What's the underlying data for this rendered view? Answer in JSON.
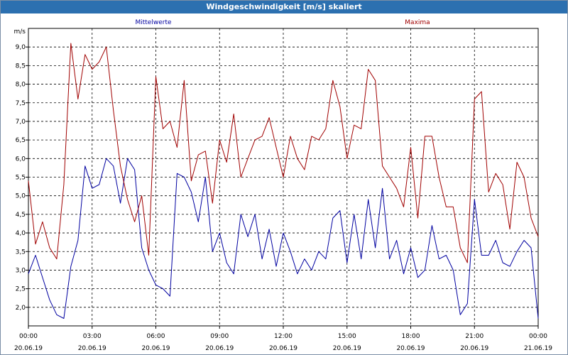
{
  "window": {
    "title": "Windgeschwindigkeit [m/s] skaliert"
  },
  "chart_data": {
    "type": "line",
    "title": "Windgeschwindigkeit [m/s] skaliert",
    "ylabel": "m/s",
    "ylim": [
      1.5,
      9.5
    ],
    "yticks": [
      "2,0",
      "2,5",
      "3,0",
      "3,5",
      "4,0",
      "4,5",
      "5,0",
      "5,5",
      "6,0",
      "6,5",
      "7,0",
      "7,5",
      "8,0",
      "8,5",
      "9,0"
    ],
    "xlim": [
      "20.06.19 00:00",
      "21.06.19 00:00"
    ],
    "xticks": [
      {
        "time": "00:00",
        "date": "20.06.19"
      },
      {
        "time": "03:00",
        "date": "20.06.19"
      },
      {
        "time": "06:00",
        "date": "20.06.19"
      },
      {
        "time": "09:00",
        "date": "20.06.19"
      },
      {
        "time": "12:00",
        "date": "20.06.19"
      },
      {
        "time": "15:00",
        "date": "20.06.19"
      },
      {
        "time": "18:00",
        "date": "20.06.19"
      },
      {
        "time": "21:00",
        "date": "20.06.19"
      },
      {
        "time": "00:00",
        "date": "21.06.19"
      }
    ],
    "grid": true,
    "series": [
      {
        "name": "Mittelwerte",
        "color": "#0000a0",
        "x": [
          "00:00",
          "00:20",
          "00:40",
          "01:00",
          "01:20",
          "01:40",
          "02:00",
          "02:20",
          "02:40",
          "03:00",
          "03:20",
          "03:40",
          "04:00",
          "04:20",
          "04:40",
          "05:00",
          "05:20",
          "05:40",
          "06:00",
          "06:20",
          "06:40",
          "07:00",
          "07:20",
          "07:40",
          "08:00",
          "08:20",
          "08:40",
          "09:00",
          "09:20",
          "09:40",
          "10:00",
          "10:20",
          "10:40",
          "11:00",
          "11:20",
          "11:40",
          "12:00",
          "12:20",
          "12:40",
          "13:00",
          "13:20",
          "13:40",
          "14:00",
          "14:20",
          "14:40",
          "15:00",
          "15:20",
          "15:40",
          "16:00",
          "16:20",
          "16:40",
          "17:00",
          "17:20",
          "17:40",
          "18:00",
          "18:20",
          "18:40",
          "19:00",
          "19:20",
          "19:40",
          "20:00",
          "20:20",
          "20:40",
          "21:00",
          "21:20",
          "21:40",
          "22:00",
          "22:20",
          "22:40",
          "23:00",
          "23:20",
          "23:40",
          "24:00"
        ],
        "values": [
          2.9,
          3.4,
          2.8,
          2.2,
          1.8,
          1.7,
          3.1,
          3.8,
          5.8,
          5.2,
          5.3,
          6.0,
          5.8,
          4.8,
          6.0,
          5.7,
          3.6,
          3.0,
          2.6,
          2.5,
          2.3,
          5.6,
          5.5,
          5.1,
          4.3,
          5.5,
          3.5,
          4.0,
          3.2,
          2.9,
          4.5,
          3.9,
          4.5,
          3.3,
          4.1,
          3.1,
          4.0,
          3.5,
          2.9,
          3.3,
          3.0,
          3.5,
          3.3,
          4.4,
          4.6,
          3.2,
          4.5,
          3.3,
          4.9,
          3.6,
          5.2,
          3.3,
          3.8,
          2.9,
          3.6,
          2.8,
          3.0,
          4.2,
          3.3,
          3.4,
          3.0,
          1.8,
          2.1,
          4.9,
          3.4,
          3.4,
          3.8,
          3.2,
          3.1,
          3.5,
          3.8,
          3.6,
          1.7
        ]
      },
      {
        "name": "Maxima",
        "color": "#a00000",
        "x": [
          "00:00",
          "00:20",
          "00:40",
          "01:00",
          "01:20",
          "01:40",
          "02:00",
          "02:20",
          "02:40",
          "03:00",
          "03:20",
          "03:40",
          "04:00",
          "04:20",
          "04:40",
          "05:00",
          "05:20",
          "05:40",
          "06:00",
          "06:20",
          "06:40",
          "07:00",
          "07:20",
          "07:40",
          "08:00",
          "08:20",
          "08:40",
          "09:00",
          "09:20",
          "09:40",
          "10:00",
          "10:20",
          "10:40",
          "11:00",
          "11:20",
          "11:40",
          "12:00",
          "12:20",
          "12:40",
          "13:00",
          "13:20",
          "13:40",
          "14:00",
          "14:20",
          "14:40",
          "15:00",
          "15:20",
          "15:40",
          "16:00",
          "16:20",
          "16:40",
          "17:00",
          "17:20",
          "17:40",
          "18:00",
          "18:20",
          "18:40",
          "19:00",
          "19:20",
          "19:40",
          "20:00",
          "20:20",
          "20:40",
          "21:00",
          "21:20",
          "21:40",
          "22:00",
          "22:20",
          "22:40",
          "23:00",
          "23:20",
          "23:40",
          "24:00"
        ],
        "values": [
          5.4,
          3.7,
          4.3,
          3.6,
          3.3,
          5.3,
          9.1,
          7.6,
          8.8,
          8.4,
          8.6,
          9.0,
          7.3,
          5.8,
          4.9,
          4.3,
          5.0,
          3.4,
          8.2,
          6.8,
          7.0,
          6.3,
          8.1,
          5.4,
          6.1,
          6.2,
          4.8,
          6.5,
          5.9,
          7.2,
          5.5,
          6.0,
          6.5,
          6.6,
          7.1,
          6.3,
          5.5,
          6.6,
          6.0,
          5.7,
          6.6,
          6.5,
          6.8,
          8.1,
          7.4,
          6.0,
          6.9,
          6.8,
          8.4,
          8.1,
          5.8,
          5.5,
          5.2,
          4.7,
          6.3,
          4.4,
          6.6,
          6.6,
          5.5,
          4.7,
          4.7,
          3.6,
          3.2,
          7.6,
          7.8,
          5.1,
          5.6,
          5.3,
          4.1,
          5.9,
          5.5,
          4.4,
          3.9
        ]
      }
    ]
  }
}
